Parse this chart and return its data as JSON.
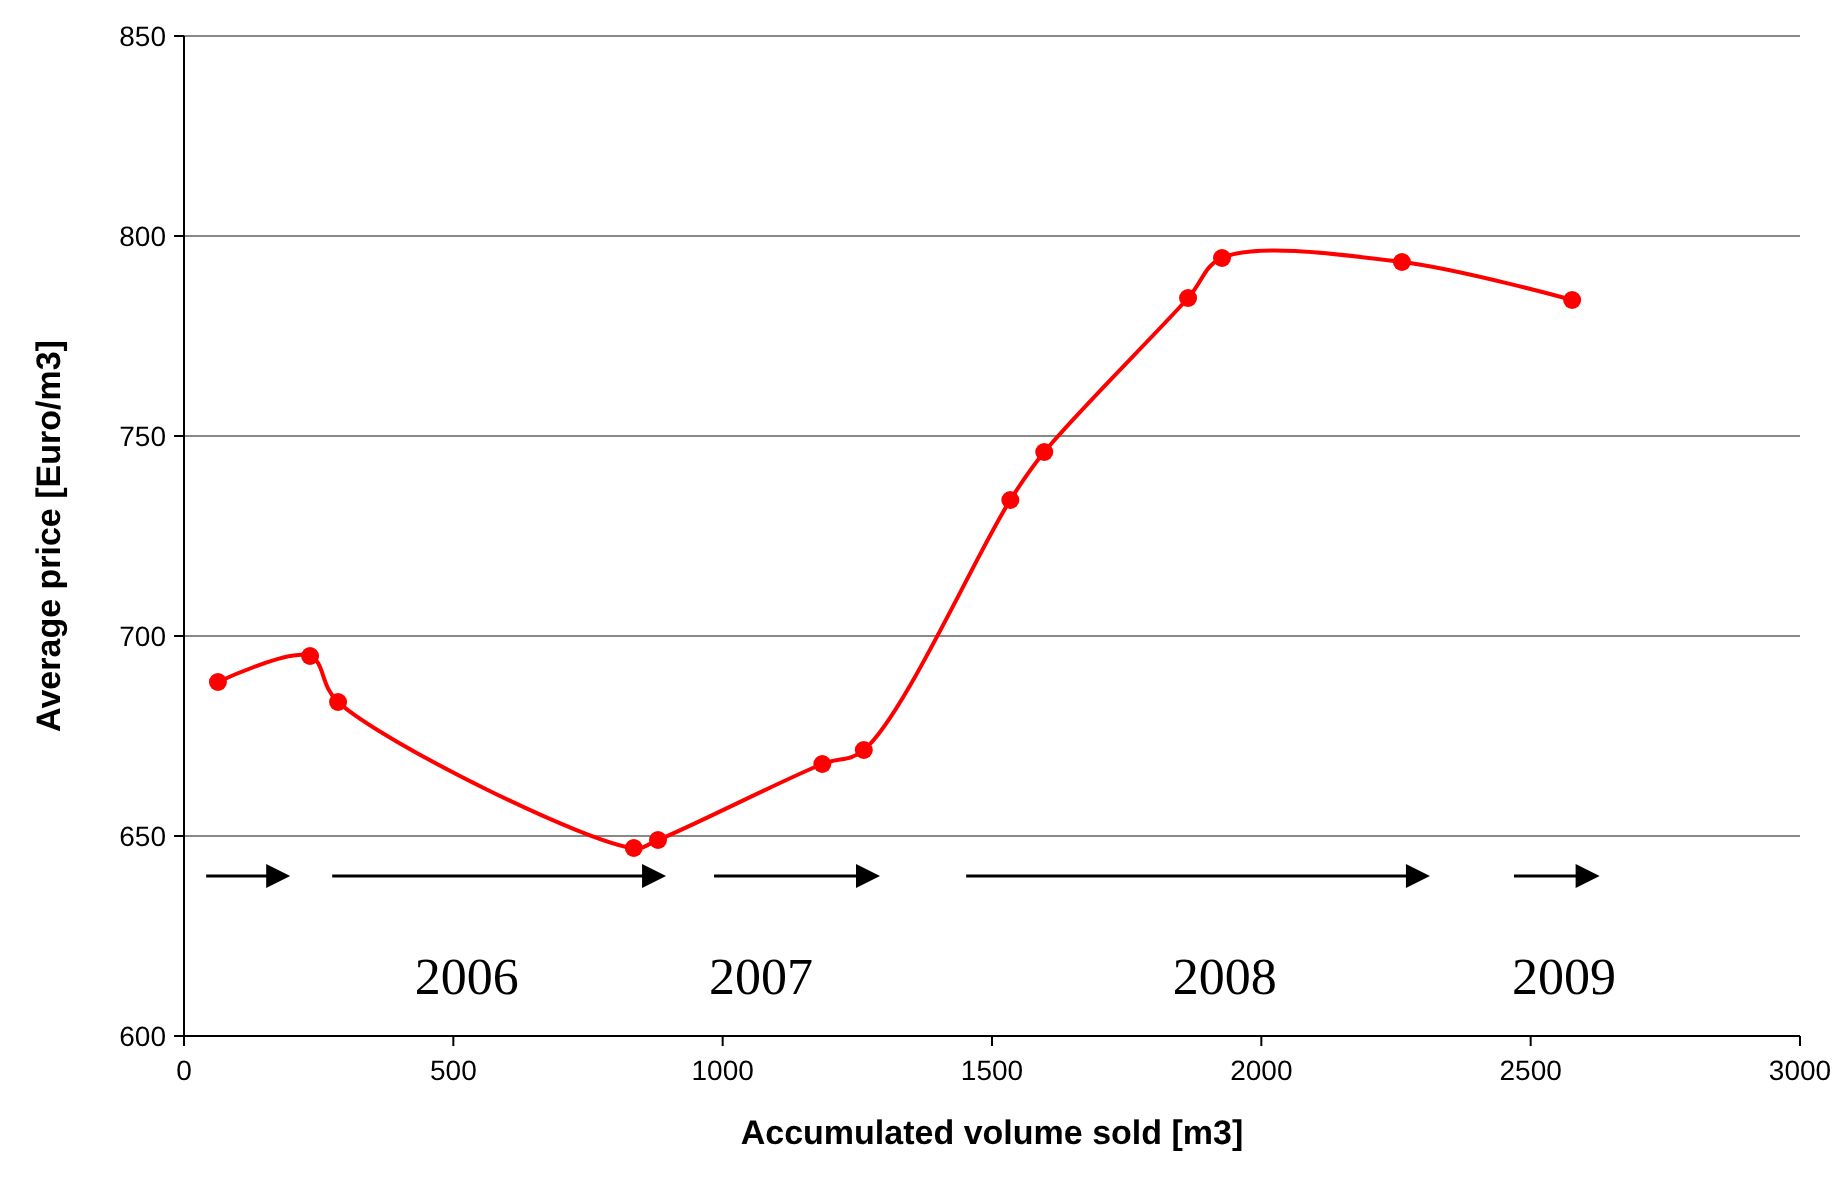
{
  "chart_data": {
    "type": "line",
    "xlabel": "Accumulated volume sold [m3]",
    "ylabel": "Average price [Euro/m3]",
    "x": [
      63,
      234,
      286,
      835,
      880,
      1185,
      1262,
      1534,
      1597,
      1864,
      1927,
      2261,
      2577
    ],
    "series": [
      {
        "color": "#ff0000",
        "values": [
          688.5,
          695,
          683.5,
          647,
          649,
          668,
          671.5,
          734,
          746,
          784.5,
          794.5,
          793.5,
          784
        ]
      }
    ],
    "xlim": [
      0,
      3000
    ],
    "xticks": [
      0,
      500,
      1000,
      1500,
      2000,
      2500,
      3000
    ],
    "ylim": [
      600,
      850
    ],
    "yticks": [
      600,
      650,
      700,
      750,
      800,
      850
    ],
    "grid": "y",
    "marker": "circle",
    "line_style": "solid",
    "annotations": [
      "2006",
      "2007",
      "2008",
      "2009"
    ]
  }
}
